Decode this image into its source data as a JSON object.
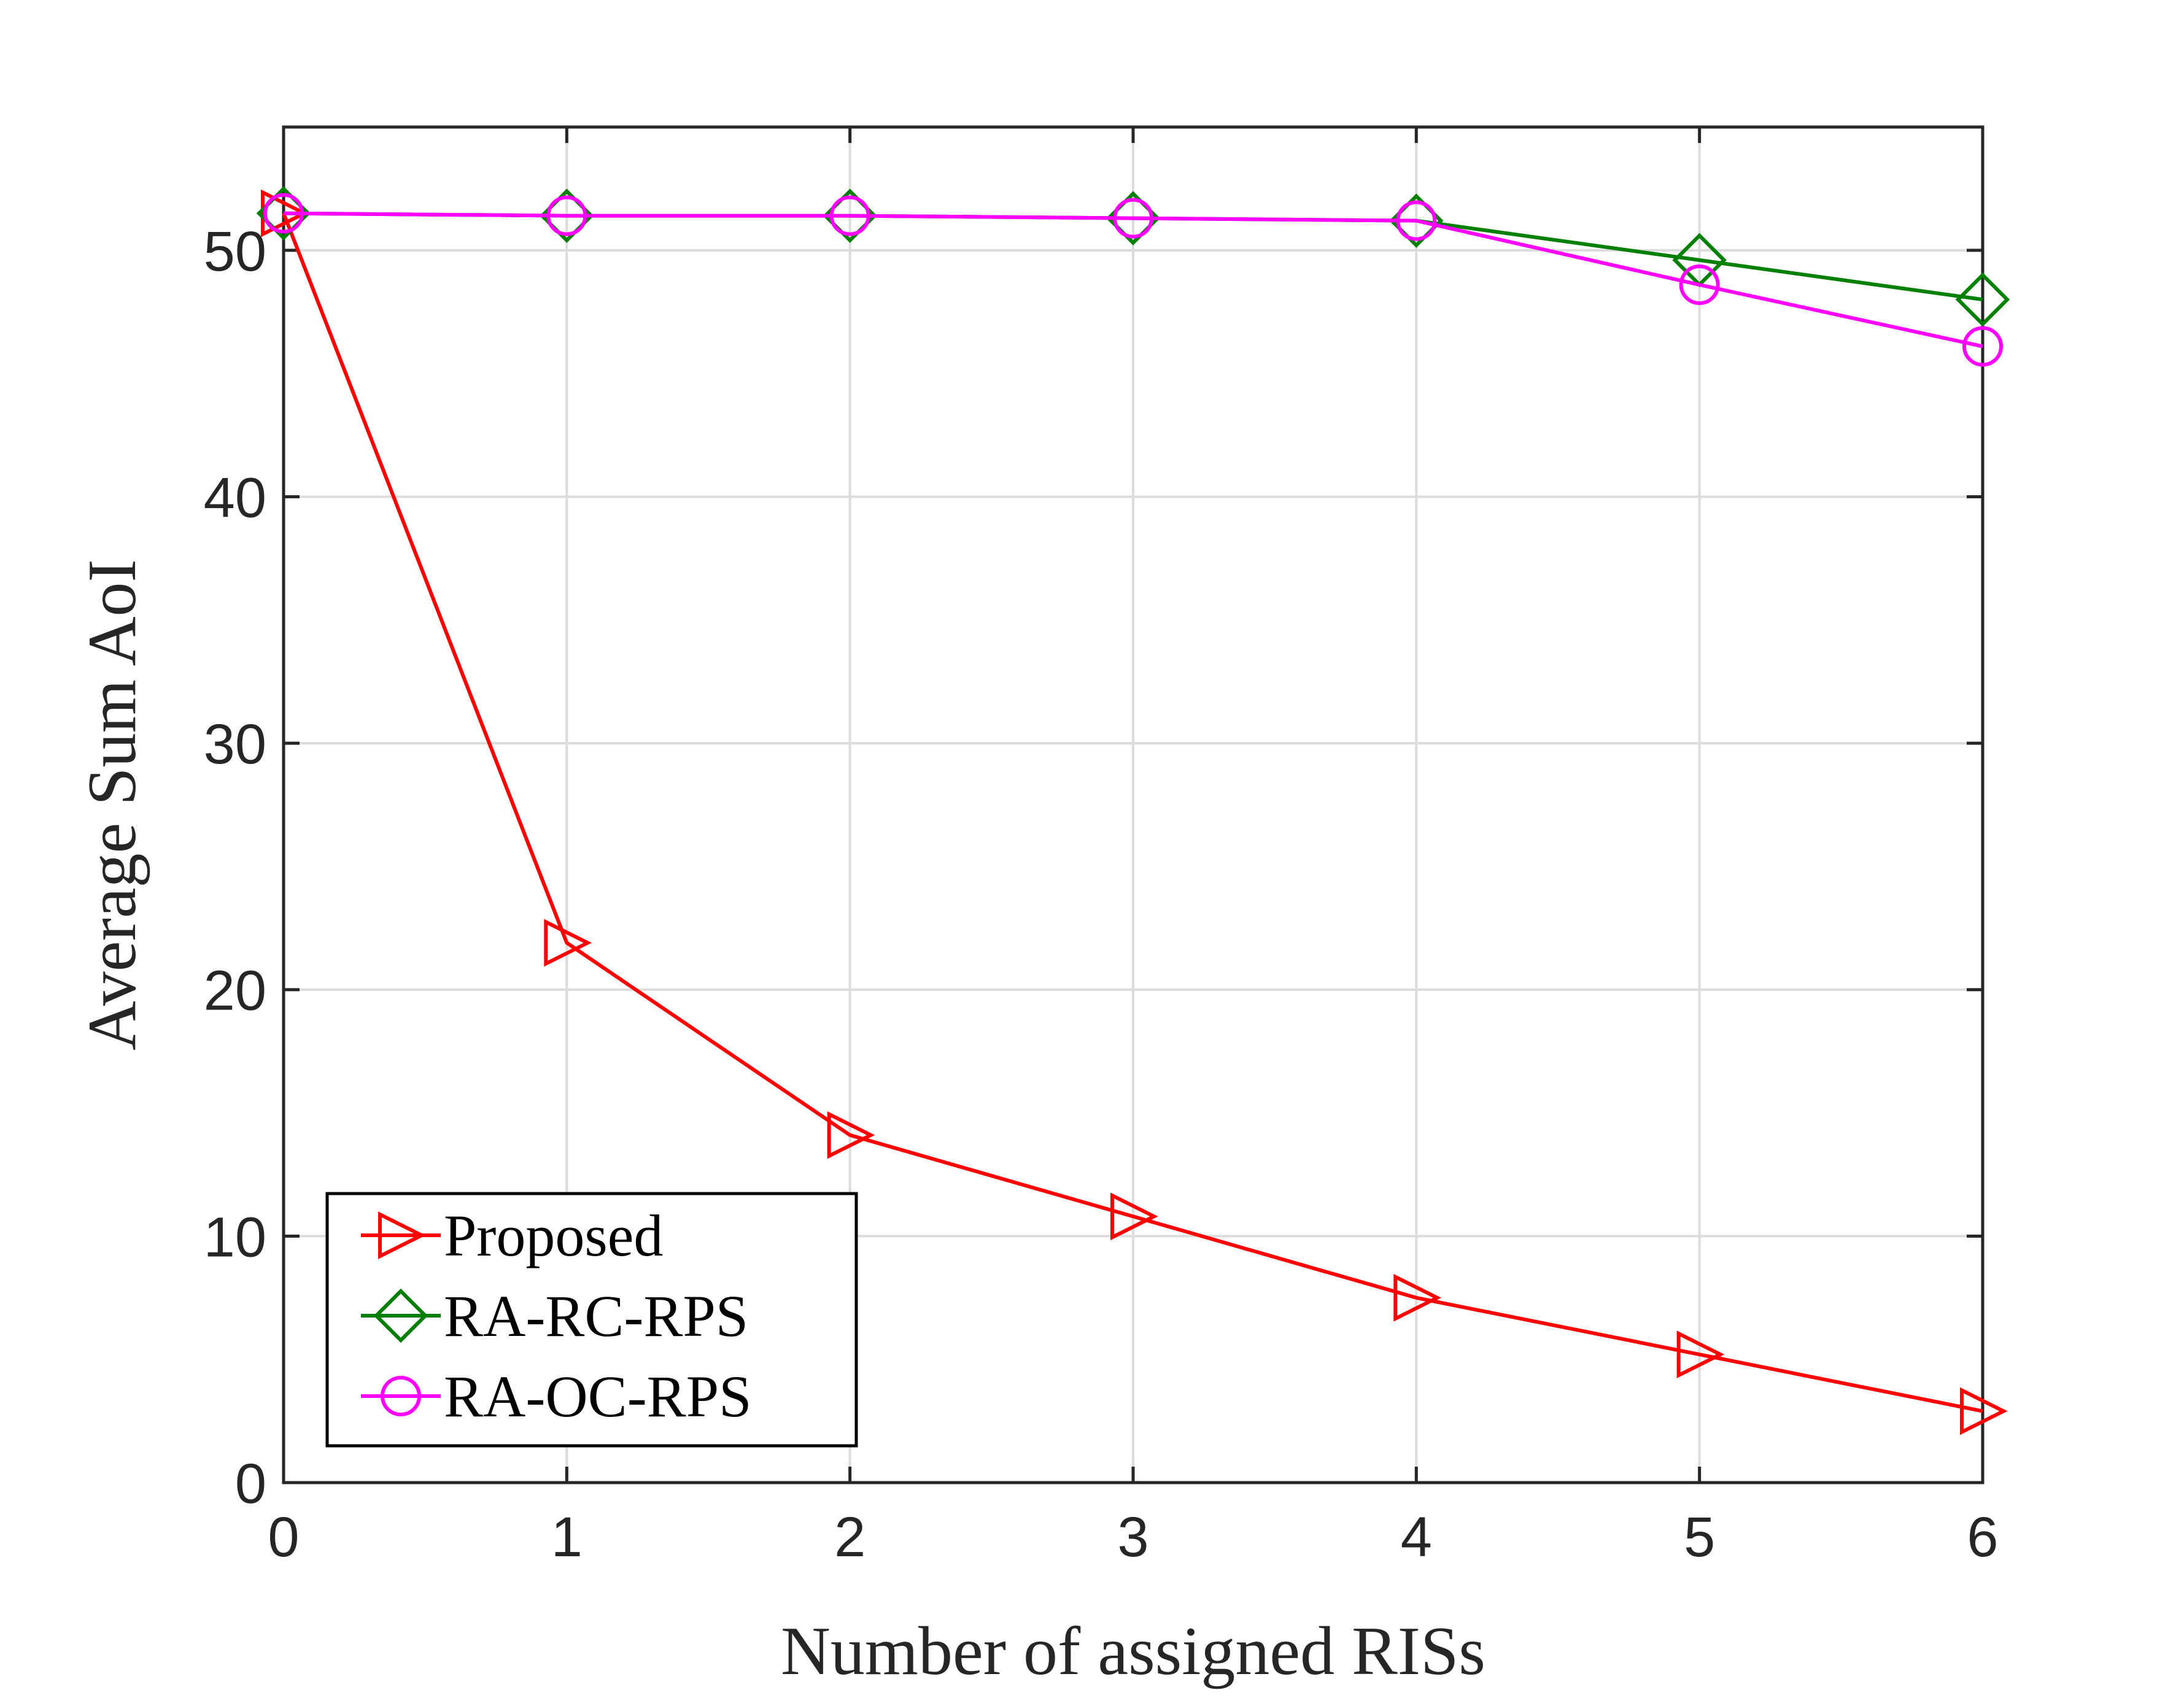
{
  "chart_data": {
    "type": "line",
    "title": "",
    "xlabel": "Number of assigned RISs",
    "ylabel": "Average Sum AoI",
    "x": [
      0,
      1,
      2,
      3,
      4,
      5,
      6
    ],
    "xlim": [
      0,
      6
    ],
    "ylim": [
      0,
      55
    ],
    "xticks": [
      0,
      1,
      2,
      3,
      4,
      5,
      6
    ],
    "yticks": [
      0,
      10,
      20,
      30,
      40,
      50
    ],
    "grid": true,
    "legend_position": "bottom-left",
    "series": [
      {
        "name": "Proposed",
        "color": "#ff0000",
        "marker": "triangle-right",
        "values": [
          51.5,
          21.9,
          14.1,
          10.8,
          7.5,
          5.2,
          2.9
        ]
      },
      {
        "name": "RA-RC-RPS",
        "color": "#007f00",
        "marker": "diamond",
        "values": [
          51.5,
          51.4,
          51.4,
          51.3,
          51.2,
          49.6,
          48.0
        ]
      },
      {
        "name": "RA-OC-RPS",
        "color": "#ff00ff",
        "marker": "circle",
        "values": [
          51.5,
          51.4,
          51.4,
          51.3,
          51.2,
          48.6,
          46.1
        ]
      }
    ]
  }
}
